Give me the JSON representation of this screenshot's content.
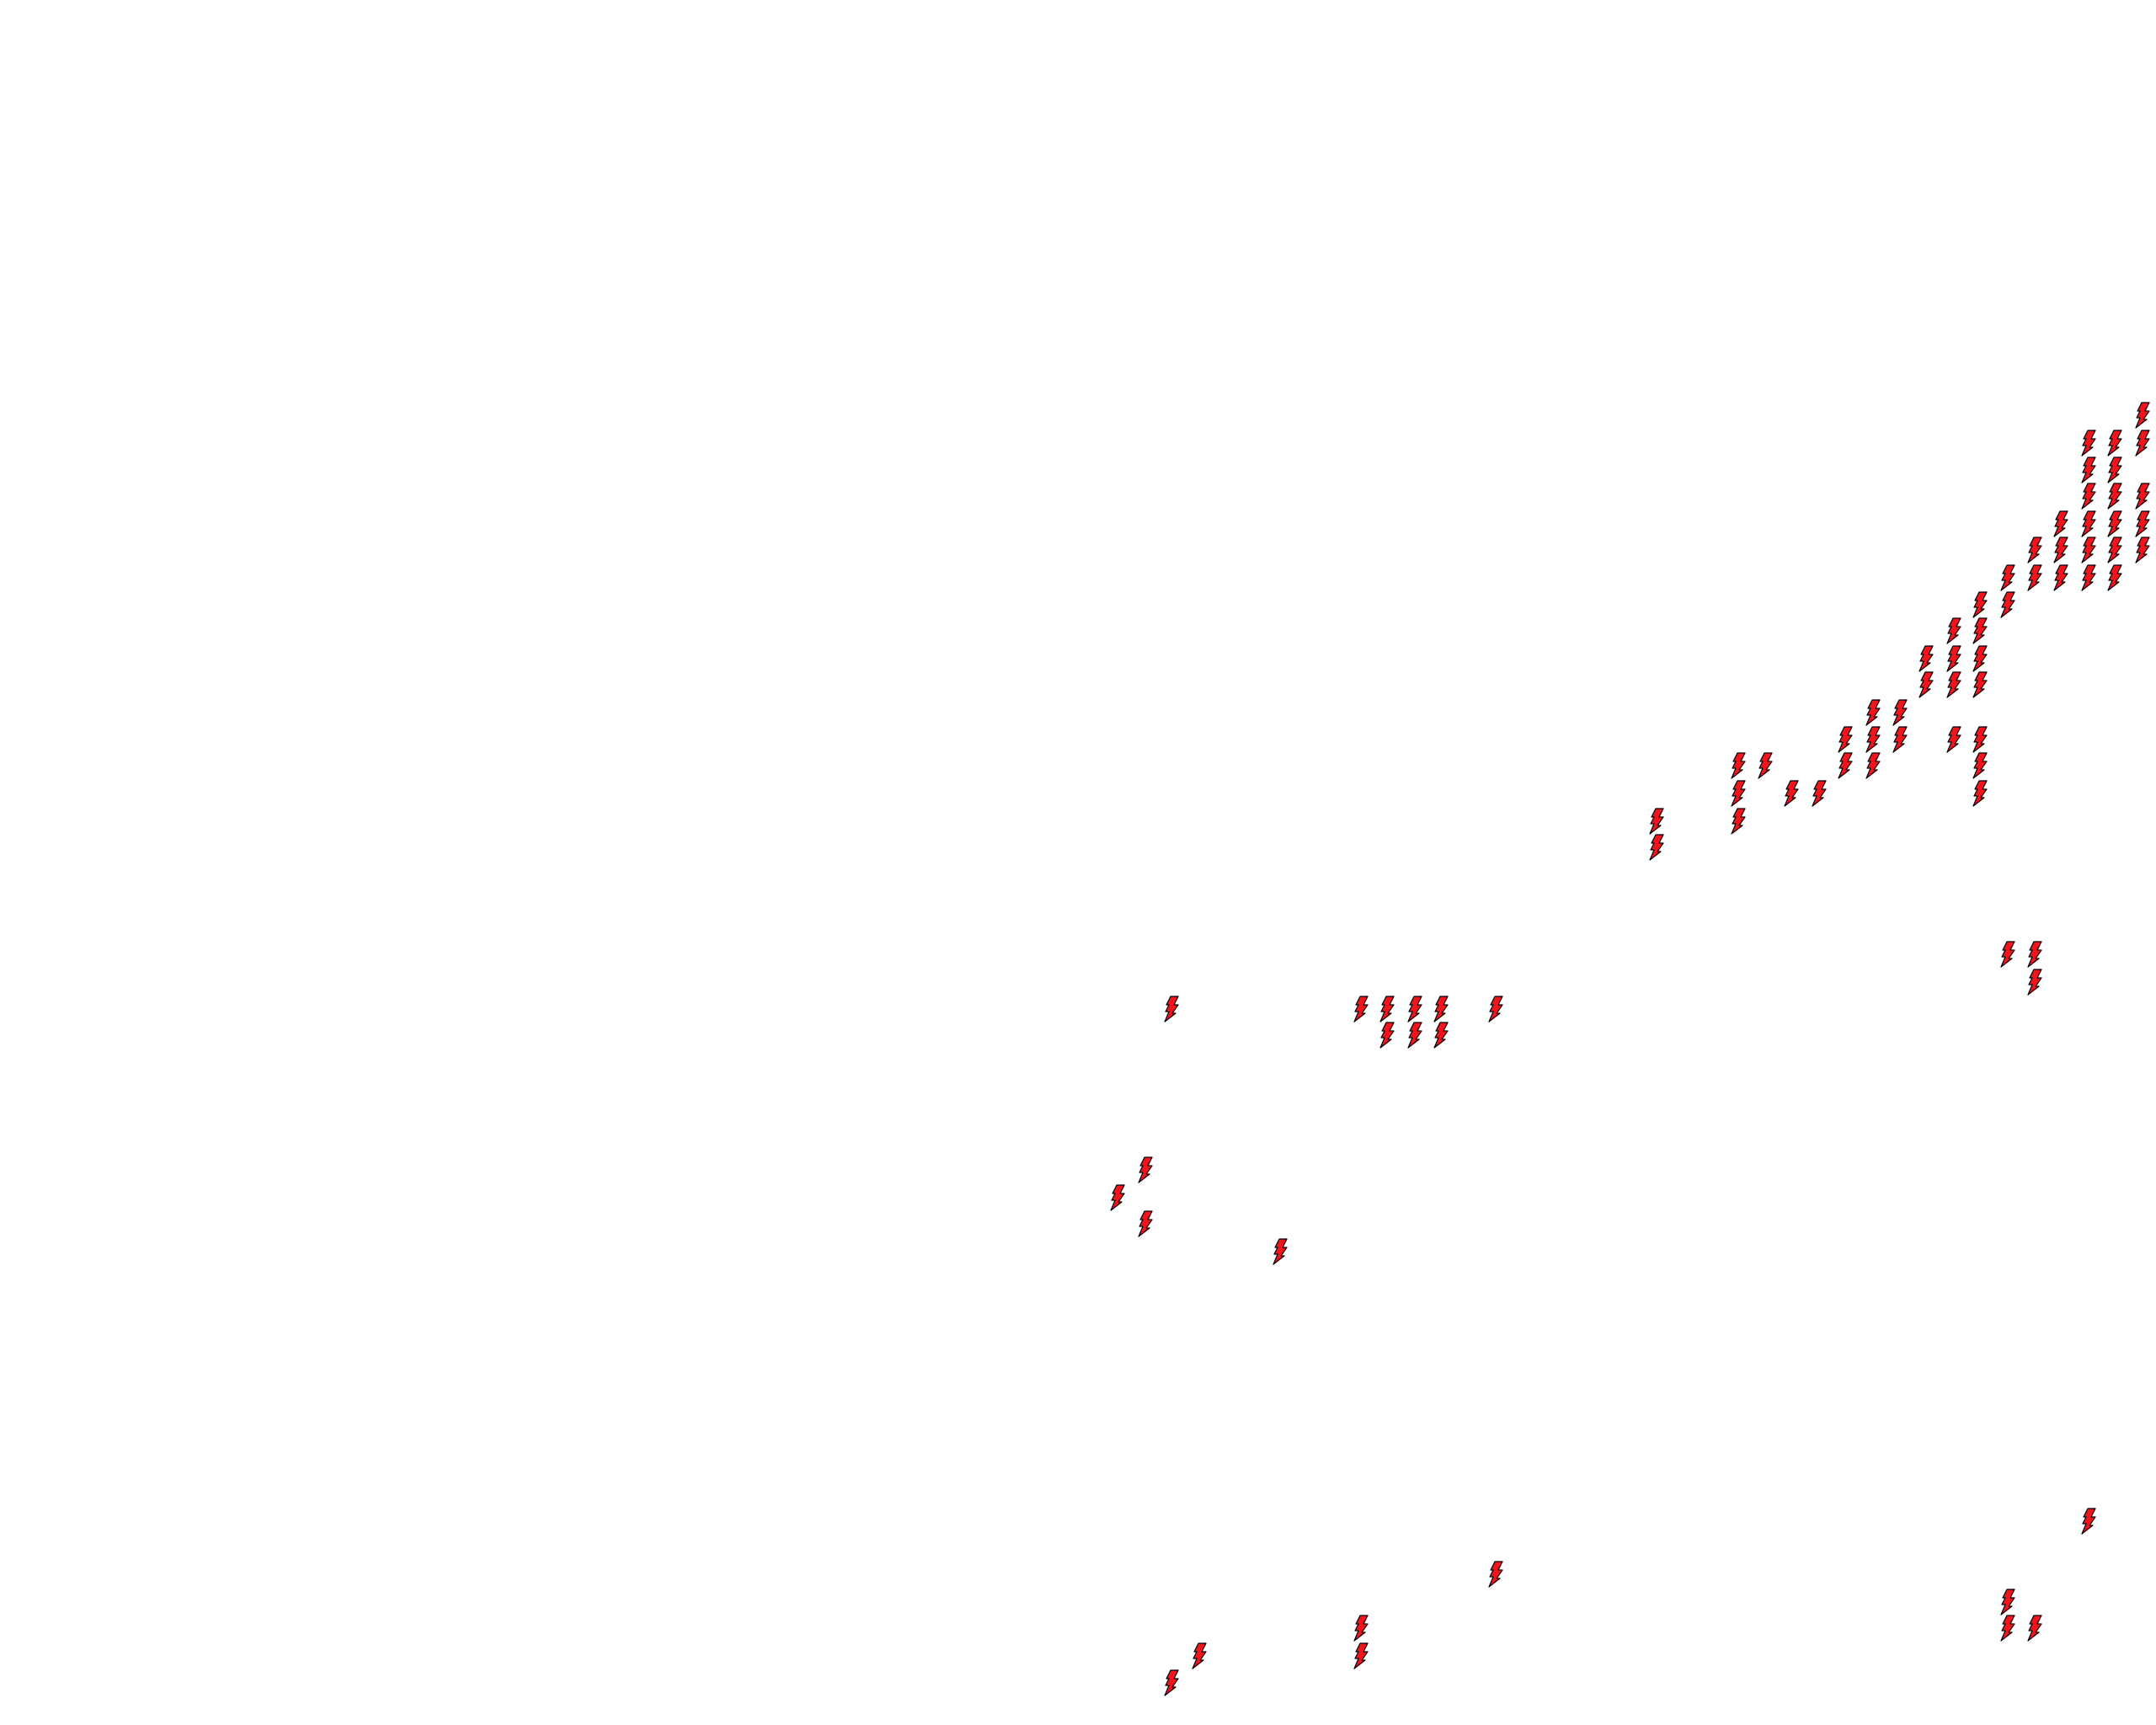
{
  "map": {
    "background": "#ffffff",
    "marker": {
      "icon": "lightning-bolt-icon",
      "fill": "#f0141e",
      "stroke": "#000000",
      "count": 84
    }
  }
}
